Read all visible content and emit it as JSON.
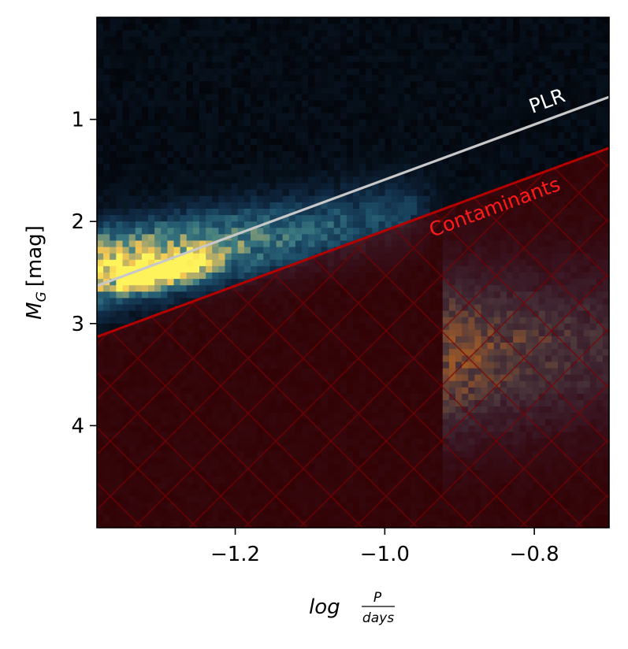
{
  "chart_data": {
    "type": "heatmap",
    "xlabel": "log",
    "xlabel_fraction_num": "P",
    "xlabel_fraction_den": "days",
    "ylabel_main": "M",
    "ylabel_sub": "G",
    "ylabel_unit": "[mag]",
    "xlim": [
      -1.385,
      -0.7
    ],
    "ylim": [
      5.0,
      0.0
    ],
    "y_inverted": true,
    "xticks": [
      -1.2,
      -1.0,
      -0.8
    ],
    "xtick_labels": [
      "−1.2",
      "−1.0",
      "−0.8"
    ],
    "yticks": [
      1,
      2,
      3,
      4
    ],
    "ytick_labels": [
      "1",
      "2",
      "3",
      "4"
    ],
    "colormap": [
      "#03060b",
      "#0f2740",
      "#1d4f6a",
      "#3d7c82",
      "#a8a86c",
      "#f2c453",
      "#fff35c"
    ],
    "density_components": [
      {
        "x_start": -1.385,
        "x_end": -0.98,
        "y_at_start": 2.45,
        "y_at_end": 1.95,
        "width": 0.35,
        "peak": 0.92,
        "decay": 0.6
      },
      {
        "x_start": -1.34,
        "x_end": -1.27,
        "y_at_start": 2.55,
        "y_at_end": 2.45,
        "width": 0.12,
        "peak": 1.0,
        "decay": 0.1
      },
      {
        "x_start": -0.9,
        "x_end": -0.7,
        "y_at_start": 3.3,
        "y_at_end": 3.2,
        "width": 0.75,
        "peak": 0.65,
        "decay": 0.3
      }
    ],
    "lines": [
      {
        "name": "PLR",
        "color": "#c8c8c8",
        "x": [
          -1.385,
          -0.7
        ],
        "y": [
          2.63,
          0.78
        ]
      },
      {
        "name": "Contaminants",
        "color": "#b00000",
        "x": [
          -1.385,
          -0.7
        ],
        "y": [
          3.13,
          1.28
        ]
      }
    ],
    "shaded_region": {
      "label": "Contaminants",
      "color": "#5a0000",
      "opacity": 0.55,
      "hatch": "x",
      "below_line": "Contaminants"
    },
    "annotations": [
      {
        "text": "PLR",
        "color": "#ffffff",
        "x": -0.78,
        "y": 0.88
      },
      {
        "text": "Contaminants",
        "color": "#ff1a1a",
        "x": -0.85,
        "y": 1.92
      }
    ]
  }
}
